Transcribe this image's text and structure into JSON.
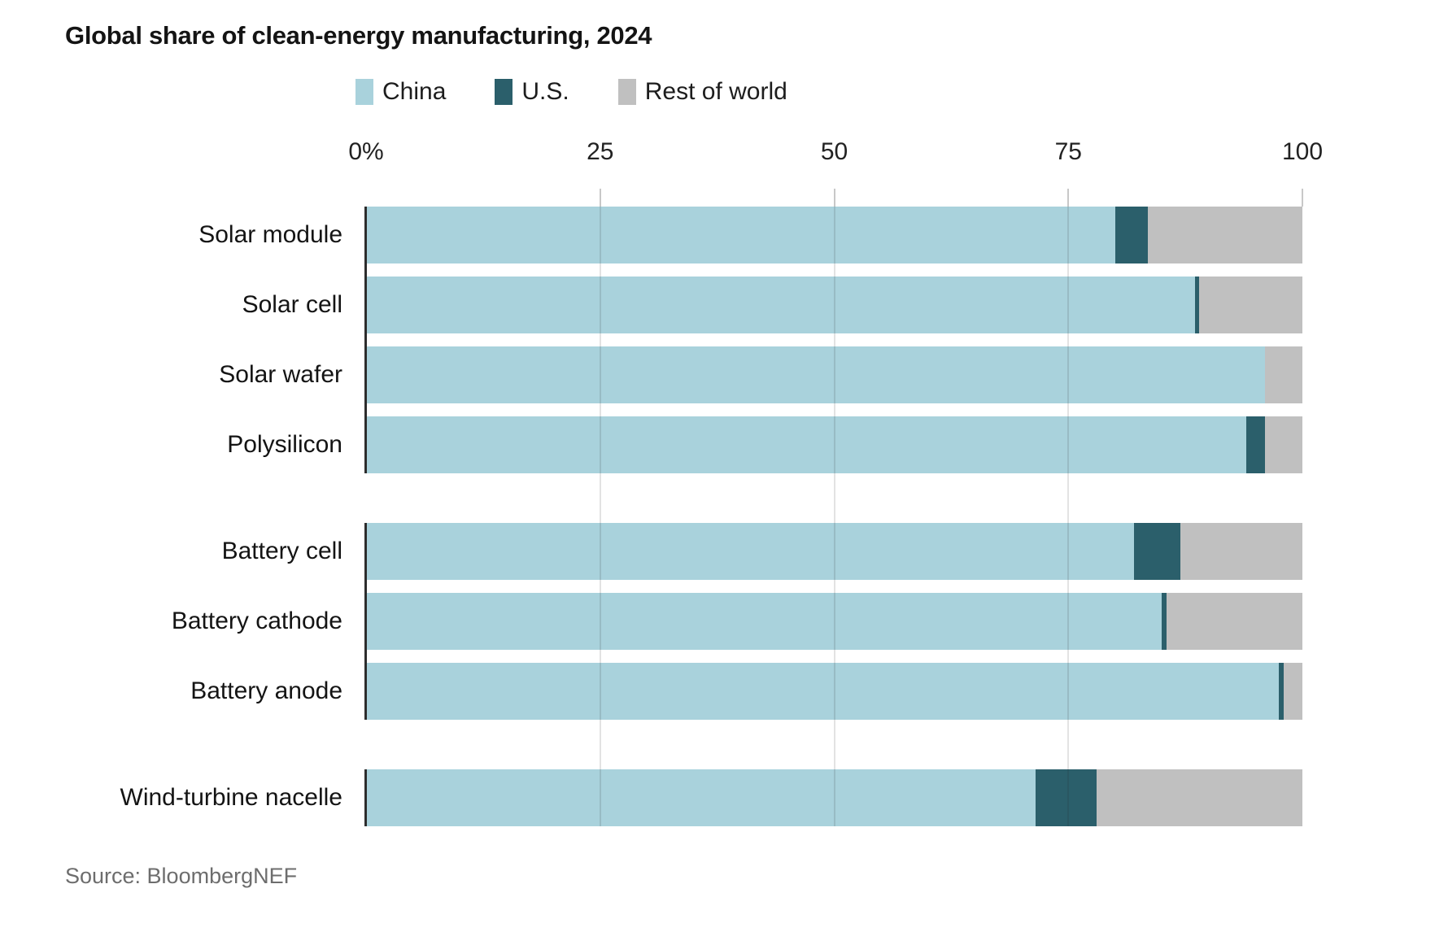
{
  "title": "Global share of clean-energy manufacturing, 2024",
  "source": "Source: BloombergNEF",
  "colors": {
    "china": "#a9d2dc",
    "us": "#2b5f6b",
    "rest_of_world": "#c0c0c0"
  },
  "legend": [
    {
      "label": "China",
      "color": "#a9d2dc"
    },
    {
      "label": "U.S.",
      "color": "#2b5f6b"
    },
    {
      "label": "Rest of world",
      "color": "#c0c0c0"
    }
  ],
  "chart_data": {
    "type": "bar",
    "orientation": "horizontal",
    "stacked": true,
    "unit": "percent",
    "title": "Global share of clean-energy manufacturing, 2024",
    "xlabel": "",
    "ylabel": "",
    "xlim": [
      0,
      100
    ],
    "x_tick_labels": [
      "0%",
      "25",
      "50",
      "75",
      "100"
    ],
    "x_tick_values": [
      0,
      25,
      50,
      75,
      100
    ],
    "grid": "vertical",
    "legend_position": "top",
    "categories": [
      "Solar module",
      "Solar cell",
      "Solar wafer",
      "Polysilicon",
      "Battery cell",
      "Battery cathode",
      "Battery anode",
      "Wind-turbine nacelle"
    ],
    "groups": [
      [
        0,
        1,
        2,
        3
      ],
      [
        4,
        5,
        6
      ],
      [
        7
      ]
    ],
    "series": [
      {
        "name": "China",
        "color": "#a9d2dc",
        "values": [
          80,
          88.5,
          96,
          94,
          82,
          85,
          97.5,
          71.5
        ]
      },
      {
        "name": "U.S.",
        "color": "#2b5f6b",
        "values": [
          3.5,
          0.5,
          0,
          2,
          5,
          0.5,
          0.5,
          6.5
        ]
      },
      {
        "name": "Rest of world",
        "color": "#c0c0c0",
        "values": [
          16.5,
          11,
          4,
          4,
          13,
          14.5,
          2,
          22
        ]
      }
    ]
  }
}
